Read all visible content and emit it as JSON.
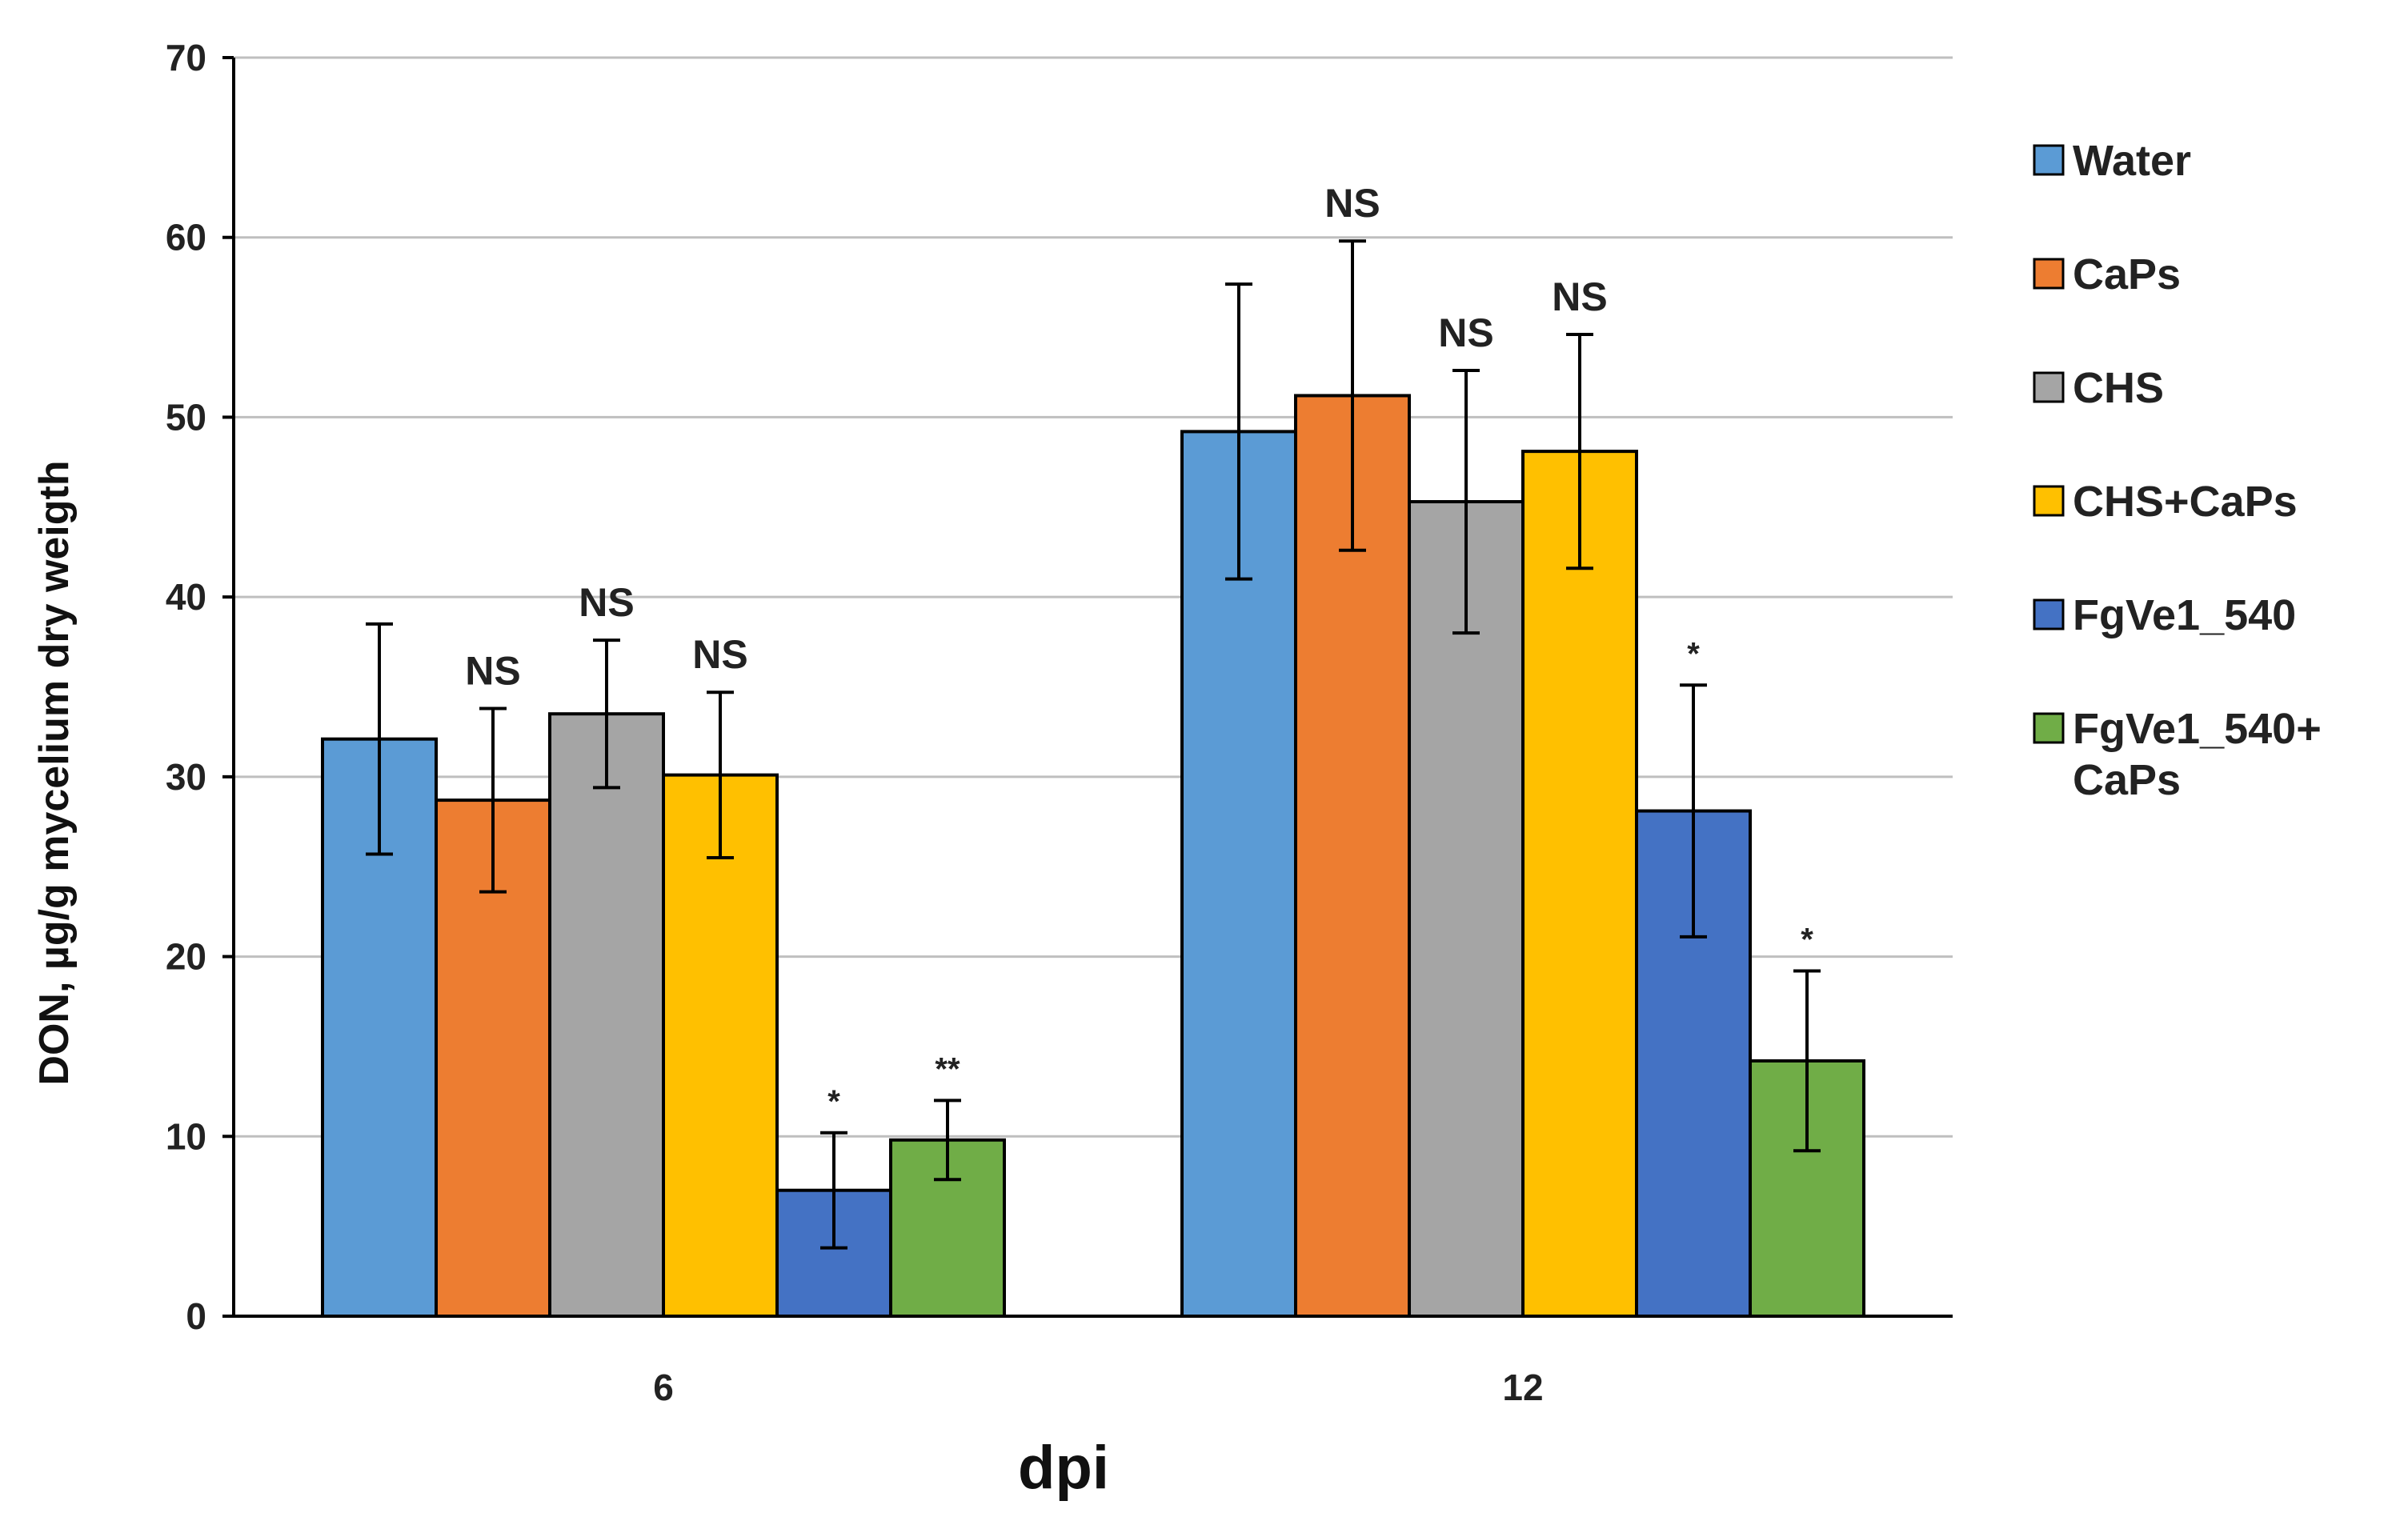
{
  "chart_data": {
    "type": "bar",
    "title": "",
    "xlabel": "dpi",
    "ylabel": "DON, µg/g mycelium dry weigth",
    "ylim": [
      0,
      70
    ],
    "yticks": [
      0,
      10,
      20,
      30,
      40,
      50,
      60,
      70
    ],
    "grid": true,
    "legend_position": "right",
    "categories": [
      "6",
      "12"
    ],
    "series": [
      {
        "name": "Water",
        "color": "#5B9BD5",
        "values": [
          32.1,
          49.2
        ],
        "errors": [
          6.4,
          8.2
        ],
        "annotations": [
          "",
          ""
        ]
      },
      {
        "name": "CaPs",
        "color": "#ED7D31",
        "values": [
          28.7,
          51.2
        ],
        "errors": [
          5.1,
          8.6
        ],
        "annotations": [
          "NS",
          "NS"
        ]
      },
      {
        "name": "CHS",
        "color": "#A5A5A5",
        "values": [
          33.5,
          45.3
        ],
        "errors": [
          4.1,
          7.3
        ],
        "annotations": [
          "NS",
          "NS"
        ]
      },
      {
        "name": "CHS+CaPs",
        "color": "#FFC000",
        "values": [
          30.1,
          48.1
        ],
        "errors": [
          4.6,
          6.5
        ],
        "annotations": [
          "NS",
          "NS"
        ]
      },
      {
        "name": "FgVe1_540",
        "color": "#4472C4",
        "values": [
          7.0,
          28.1
        ],
        "errors": [
          3.2,
          7.0
        ],
        "annotations": [
          "*",
          "*"
        ]
      },
      {
        "name": "FgVe1_540+ CaPs",
        "legend_lines": [
          "FgVe1_540+",
          "CaPs"
        ],
        "color": "#70AD47",
        "values": [
          9.8,
          14.2
        ],
        "errors": [
          2.2,
          5.0
        ],
        "annotations": [
          "**",
          "*"
        ]
      }
    ]
  }
}
